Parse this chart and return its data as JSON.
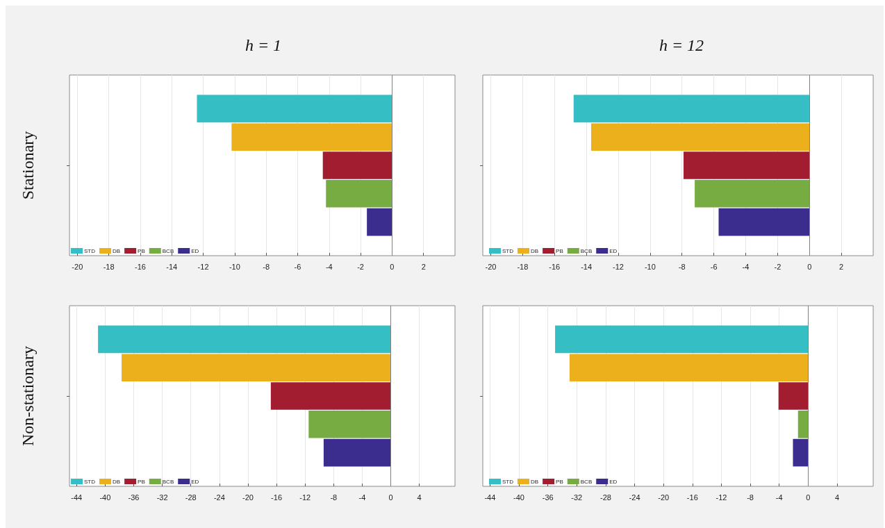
{
  "chart_data": [
    {
      "type": "bar",
      "title": "h = 1",
      "ylabel": "Stationary",
      "orientation": "horizontal",
      "categories": [
        null
      ],
      "xlim": [
        -20.5,
        4
      ],
      "xticks": [
        -20,
        -18,
        -16,
        -14,
        -12,
        -10,
        -8,
        -6,
        -4,
        -2,
        0,
        2
      ],
      "grid": "x",
      "legend": "bottom left",
      "ref_lines": [
        {
          "axis": "x",
          "value": 0,
          "color": "#808080"
        }
      ],
      "series": [
        {
          "name": "STD",
          "color": "#35bfc4",
          "values": [
            -12.4
          ]
        },
        {
          "name": "DB",
          "color": "#ebb01c",
          "values": [
            -10.2
          ]
        },
        {
          "name": "PB",
          "color": "#a31d31",
          "values": [
            -4.4
          ]
        },
        {
          "name": "BCB",
          "color": "#77ac42",
          "values": [
            -4.2
          ]
        },
        {
          "name": "ED",
          "color": "#3b2d8e",
          "values": [
            -1.6
          ]
        }
      ]
    },
    {
      "type": "bar",
      "title": "h = 12",
      "orientation": "horizontal",
      "categories": [
        null
      ],
      "xlim": [
        -20.5,
        4
      ],
      "xticks": [
        -20,
        -18,
        -16,
        -14,
        -12,
        -10,
        -8,
        -6,
        -4,
        -2,
        0,
        2
      ],
      "grid": "x",
      "legend": "bottom left",
      "ref_lines": [
        {
          "axis": "x",
          "value": 0,
          "color": "#808080"
        }
      ],
      "series": [
        {
          "name": "STD",
          "color": "#35bfc4",
          "values": [
            -14.8
          ]
        },
        {
          "name": "DB",
          "color": "#ebb01c",
          "values": [
            -13.7
          ]
        },
        {
          "name": "PB",
          "color": "#a31d31",
          "values": [
            -7.9
          ]
        },
        {
          "name": "BCB",
          "color": "#77ac42",
          "values": [
            -7.2
          ]
        },
        {
          "name": "ED",
          "color": "#3b2d8e",
          "values": [
            -5.7
          ]
        }
      ]
    },
    {
      "type": "bar",
      "ylabel": "Non-stationary",
      "orientation": "horizontal",
      "categories": [
        null
      ],
      "xlim": [
        -45,
        9
      ],
      "xticks": [
        -44,
        -40,
        -36,
        -32,
        -28,
        -24,
        -20,
        -16,
        -12,
        -8,
        -4,
        0,
        4
      ],
      "grid": "x",
      "legend": "bottom left",
      "ref_lines": [
        {
          "axis": "x",
          "value": 0,
          "color": "#808080"
        }
      ],
      "series": [
        {
          "name": "STD",
          "color": "#35bfc4",
          "values": [
            -41
          ]
        },
        {
          "name": "DB",
          "color": "#ebb01c",
          "values": [
            -37.7
          ]
        },
        {
          "name": "PB",
          "color": "#a31d31",
          "values": [
            -16.8
          ]
        },
        {
          "name": "BCB",
          "color": "#77ac42",
          "values": [
            -11.5
          ]
        },
        {
          "name": "ED",
          "color": "#3b2d8e",
          "values": [
            -9.4
          ]
        }
      ]
    },
    {
      "type": "bar",
      "orientation": "horizontal",
      "categories": [
        null
      ],
      "xlim": [
        -45,
        9
      ],
      "xticks": [
        -44,
        -40,
        -36,
        -32,
        -28,
        -24,
        -20,
        -16,
        -12,
        -8,
        -4,
        0,
        4
      ],
      "grid": "x",
      "legend": "bottom left",
      "ref_lines": [
        {
          "axis": "x",
          "value": 0,
          "color": "#808080"
        }
      ],
      "series": [
        {
          "name": "STD",
          "color": "#35bfc4",
          "values": [
            -35
          ]
        },
        {
          "name": "DB",
          "color": "#ebb01c",
          "values": [
            -33
          ]
        },
        {
          "name": "PB",
          "color": "#a31d31",
          "values": [
            -4.1
          ]
        },
        {
          "name": "BCB",
          "color": "#77ac42",
          "values": [
            -1.4
          ]
        },
        {
          "name": "ED",
          "color": "#3b2d8e",
          "values": [
            -2.1
          ]
        }
      ]
    }
  ]
}
